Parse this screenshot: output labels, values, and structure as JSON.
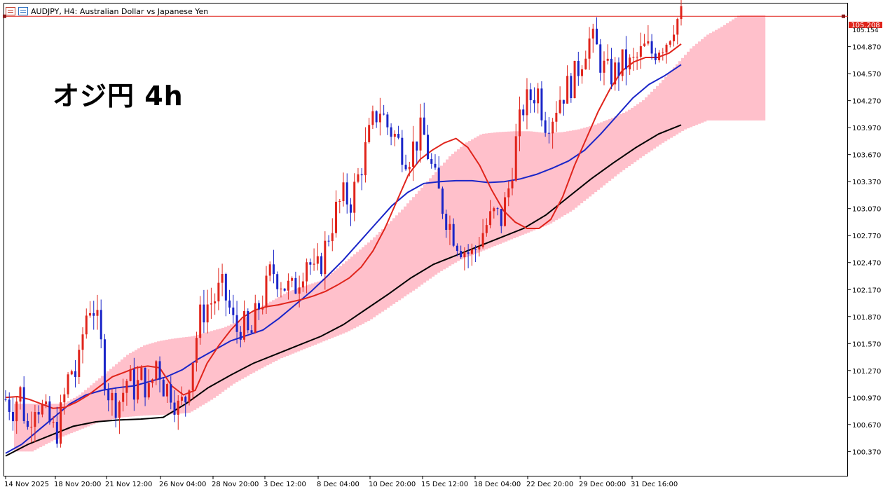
{
  "window": {
    "title": "AUDJPY, H4:  Australian Dollar vs Japanese Yen",
    "overlay_label": "オジ円 4h"
  },
  "colors": {
    "bull_candle": "#e0241b",
    "bear_candle": "#1a25c8",
    "sma_fast": "#e0241b",
    "sma_mid": "#1a25c8",
    "sma_slow": "#000000",
    "cloud_bull": "#ffc0cb",
    "cloud_bear": "#b3ecec",
    "price_line": "#e0241b"
  },
  "chart_data": {
    "type": "candlestick",
    "symbol": "AUDJPY",
    "timeframe": "H4",
    "ylim": [
      100.1,
      105.35
    ],
    "yticks": [
      "104.870",
      "104.570",
      "104.270",
      "103.970",
      "103.670",
      "103.370",
      "103.070",
      "102.770",
      "102.470",
      "102.170",
      "101.870",
      "101.570",
      "101.270",
      "100.970",
      "100.670",
      "100.370"
    ],
    "xticks": [
      "14 Nov 2025",
      "18 Nov 20:00",
      "21 Nov 12:00",
      "26 Nov 04:00",
      "28 Nov 20:00",
      "3 Dec 12:00",
      "8 Dec 04:00",
      "10 Dec 20:00",
      "15 Dec 12:00",
      "18 Dec 04:00",
      "22 Dec 20:00",
      "29 Dec 00:00",
      "31 Dec 16:00"
    ],
    "current_price": "105.208",
    "secondary_price": "105.154",
    "close_path": [
      100.95,
      100.85,
      101.05,
      100.6,
      100.95,
      100.85,
      100.7,
      100.55,
      100.9,
      101.3,
      101.2,
      101.85,
      102.05,
      101.7,
      101.1,
      100.9,
      100.95,
      101.2,
      101.05,
      101.2,
      101.0,
      101.4,
      101.1,
      101.05,
      100.85,
      100.95,
      101.4,
      101.85,
      102.0,
      102.05,
      102.2,
      102.0,
      101.7,
      101.8,
      101.6,
      101.95,
      102.1,
      102.4,
      102.3,
      102.2,
      102.15,
      102.35,
      102.55,
      102.3,
      102.5,
      102.8,
      103.05,
      103.2,
      103.15,
      103.4,
      103.7,
      104.0,
      104.2,
      104.0,
      103.9,
      103.75,
      103.65,
      103.8,
      103.95,
      103.6,
      103.3,
      103.05,
      102.85,
      102.7,
      102.6,
      102.55,
      102.75,
      102.9,
      103.0,
      102.95,
      103.3,
      103.8,
      104.2,
      104.3,
      104.4,
      104.05,
      104.1,
      104.3,
      104.4,
      104.5,
      104.7,
      104.95,
      104.9,
      104.65,
      104.55,
      104.6,
      104.7,
      104.65,
      104.75,
      104.85,
      104.8,
      104.9,
      104.95,
      105.15,
      105.2
    ],
    "sma_fast": [
      100.97,
      100.98,
      100.95,
      100.9,
      100.85,
      100.86,
      100.92,
      101.0,
      101.1,
      101.2,
      101.25,
      101.3,
      101.32,
      101.3,
      101.1,
      101.0,
      101.05,
      101.35,
      101.55,
      101.72,
      101.86,
      101.94,
      101.98,
      102.0,
      102.03,
      102.06,
      102.1,
      102.15,
      102.22,
      102.3,
      102.42,
      102.6,
      102.85,
      103.15,
      103.45,
      103.62,
      103.72,
      103.8,
      103.85,
      103.75,
      103.55,
      103.28,
      103.05,
      102.92,
      102.85,
      102.85,
      102.95,
      103.2,
      103.55,
      103.85,
      104.15,
      104.4,
      104.6,
      104.7,
      104.75,
      104.75,
      104.8,
      104.9
    ],
    "sma_mid": [
      100.35,
      100.45,
      100.6,
      100.75,
      100.9,
      101.0,
      101.05,
      101.08,
      101.1,
      101.15,
      101.2,
      101.28,
      101.4,
      101.5,
      101.6,
      101.66,
      101.72,
      101.85,
      102.0,
      102.15,
      102.32,
      102.5,
      102.7,
      102.9,
      103.1,
      103.25,
      103.35,
      103.37,
      103.38,
      103.38,
      103.36,
      103.37,
      103.4,
      103.45,
      103.52,
      103.6,
      103.72,
      103.9,
      104.1,
      104.3,
      104.45,
      104.55,
      104.67
    ],
    "sma_slow": [
      100.32,
      100.45,
      100.55,
      100.65,
      100.7,
      100.72,
      100.73,
      100.75,
      100.9,
      101.08,
      101.22,
      101.35,
      101.45,
      101.55,
      101.65,
      101.78,
      101.95,
      102.12,
      102.3,
      102.45,
      102.55,
      102.65,
      102.75,
      102.85,
      103.0,
      103.2,
      103.4,
      103.58,
      103.75,
      103.9,
      104.0
    ]
  }
}
